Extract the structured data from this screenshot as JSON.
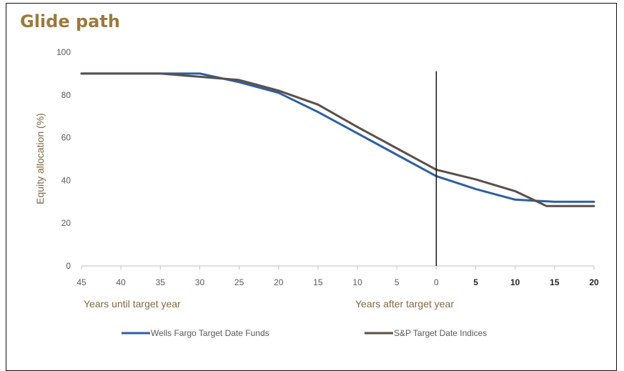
{
  "chart_data": {
    "type": "line",
    "title": "Glide path",
    "ylabel": "Equity allocation (%)",
    "xlabel_left": "Years until target year",
    "xlabel_right": "Years after target year",
    "ylim": [
      0,
      100
    ],
    "y_ticks": [
      0,
      20,
      40,
      60,
      80,
      100
    ],
    "x_tick_labels": [
      "45",
      "40",
      "35",
      "30",
      "25",
      "20",
      "15",
      "10",
      "5",
      "0",
      "5",
      "10",
      "15",
      "20"
    ],
    "x_axis_note": "x = years relative to target year (negative = before target)",
    "xlim": [
      -45,
      20
    ],
    "target_line_x": 0,
    "grid": false,
    "legend_position": "bottom",
    "series": [
      {
        "name": "Wells Fargo Target Date Funds",
        "color": "#2e5fa3",
        "points": [
          [
            -45,
            90
          ],
          [
            -40,
            90
          ],
          [
            -35,
            90
          ],
          [
            -30,
            90
          ],
          [
            -25,
            86
          ],
          [
            -20,
            81
          ],
          [
            -15,
            72
          ],
          [
            -10,
            62
          ],
          [
            -5,
            52
          ],
          [
            0,
            42
          ],
          [
            5,
            36
          ],
          [
            10,
            31
          ],
          [
            15,
            30
          ],
          [
            20,
            30
          ]
        ]
      },
      {
        "name": "S&P Target Date Indices",
        "color": "#5b4f4a",
        "points": [
          [
            -45,
            90
          ],
          [
            -40,
            90
          ],
          [
            -35,
            90
          ],
          [
            -30,
            88.5
          ],
          [
            -25,
            87
          ],
          [
            -20,
            82
          ],
          [
            -15,
            75.5
          ],
          [
            -10,
            65
          ],
          [
            -5,
            55
          ],
          [
            0,
            45
          ],
          [
            5,
            40.5
          ],
          [
            10,
            35
          ],
          [
            14,
            28
          ],
          [
            20,
            28
          ]
        ]
      }
    ]
  }
}
